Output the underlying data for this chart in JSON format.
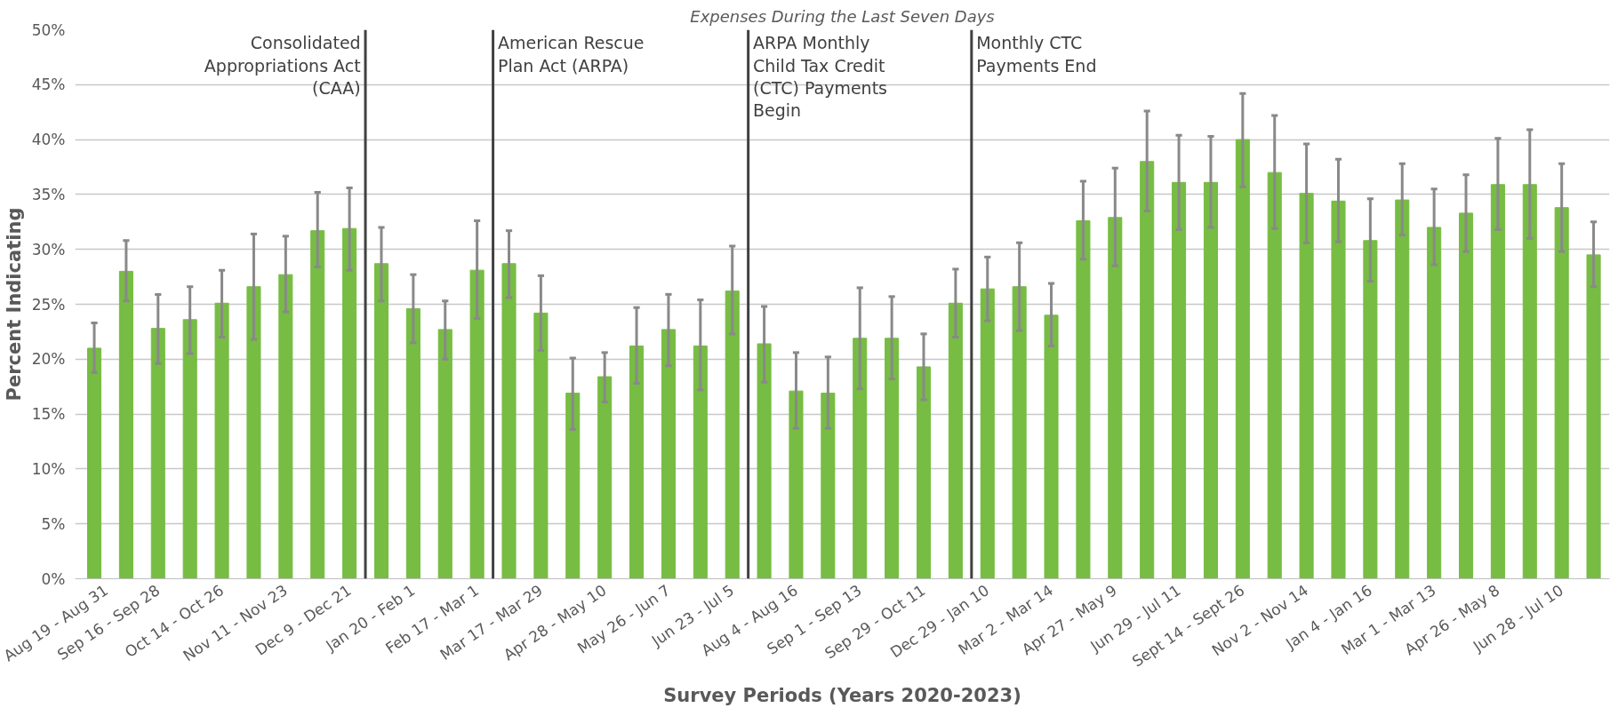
{
  "chart_data": {
    "type": "bar",
    "title": "Expenses During the Last Seven Days",
    "xlabel": "Survey Periods (Years 2020-2023)",
    "ylabel": "Percent Indicating",
    "categories": [
      "Aug 19 - Aug 31",
      null,
      "Sep 16 - Sep 28",
      null,
      "Oct 14 - Oct 26",
      null,
      "Nov 11 - Nov 23",
      null,
      "Dec 9 - Dec 21",
      null,
      "Jan 20 - Feb 1",
      null,
      "Feb 17 - Mar 1",
      null,
      "Mar 17 - Mar 29",
      null,
      "Apr 28 - May 10",
      null,
      "May 26 - Jun 7",
      null,
      "Jun 23 - Jul 5",
      null,
      "Aug 4 - Aug 16",
      null,
      "Sep 1 - Sep 13",
      null,
      "Sep 29 - Oct 11",
      null,
      "Dec 29 - Jan 10",
      null,
      "Mar 2 - Mar 14",
      null,
      "Apr 27 - May 9",
      null,
      "Jun 29 - Jul 11",
      null,
      "Sept 14 - Sept 26",
      null,
      "Nov 2 - Nov 14",
      null,
      "Jan 4 - Jan 16",
      null,
      "Mar 1 - Mar 13",
      null,
      "Apr 26 - May 8",
      null,
      "Jun 28 - Jul 10",
      null
    ],
    "series": [
      {
        "color": "#77bc43",
        "values": [
          21.0,
          28.0,
          22.8,
          23.6,
          25.1,
          26.6,
          27.7,
          31.7,
          31.9,
          28.7,
          24.6,
          22.7,
          28.1,
          28.7,
          24.2,
          16.9,
          18.4,
          21.2,
          22.7,
          21.2,
          26.2,
          21.4,
          17.1,
          16.9,
          21.9,
          21.9,
          19.3,
          25.1,
          26.4,
          26.6,
          24.0,
          32.6,
          32.9,
          38.0,
          36.1,
          36.1,
          40.0,
          37.0,
          35.1,
          34.4,
          30.8,
          34.5,
          32.0,
          33.3,
          35.9,
          35.9,
          33.8,
          29.5
        ],
        "errors": [
          [
            18.8,
            23.3
          ],
          [
            25.3,
            30.8
          ],
          [
            19.6,
            25.9
          ],
          [
            20.5,
            26.6
          ],
          [
            22.0,
            28.1
          ],
          [
            21.8,
            31.4
          ],
          [
            24.3,
            31.2
          ],
          [
            28.4,
            35.2
          ],
          [
            28.1,
            35.6
          ],
          [
            25.3,
            32.0
          ],
          [
            21.5,
            27.7
          ],
          [
            20.0,
            25.3
          ],
          [
            23.7,
            32.6
          ],
          [
            25.6,
            31.7
          ],
          [
            20.8,
            27.6
          ],
          [
            13.6,
            20.1
          ],
          [
            16.1,
            20.6
          ],
          [
            17.8,
            24.7
          ],
          [
            19.4,
            25.9
          ],
          [
            17.2,
            25.4
          ],
          [
            22.3,
            30.3
          ],
          [
            17.9,
            24.8
          ],
          [
            13.7,
            20.6
          ],
          [
            13.7,
            20.2
          ],
          [
            17.3,
            26.5
          ],
          [
            18.2,
            25.7
          ],
          [
            16.3,
            22.3
          ],
          [
            22.0,
            28.2
          ],
          [
            23.5,
            29.3
          ],
          [
            22.6,
            30.6
          ],
          [
            21.2,
            26.9
          ],
          [
            29.1,
            36.2
          ],
          [
            28.5,
            37.4
          ],
          [
            33.5,
            42.6
          ],
          [
            31.8,
            40.4
          ],
          [
            32.0,
            40.3
          ],
          [
            35.7,
            44.2
          ],
          [
            31.9,
            42.2
          ],
          [
            30.6,
            39.6
          ],
          [
            30.7,
            38.2
          ],
          [
            27.1,
            34.6
          ],
          [
            31.3,
            37.8
          ],
          [
            28.6,
            35.5
          ],
          [
            29.8,
            36.8
          ],
          [
            31.8,
            40.1
          ],
          [
            31.0,
            40.9
          ],
          [
            29.8,
            37.8
          ],
          [
            26.6,
            32.5
          ]
        ]
      }
    ],
    "ylim": [
      0,
      50
    ],
    "yticks": [
      {
        "value": 0,
        "label": "0%"
      },
      {
        "value": 5,
        "label": "5%"
      },
      {
        "value": 10,
        "label": "10%"
      },
      {
        "value": 15,
        "label": "15%"
      },
      {
        "value": 20,
        "label": "20%"
      },
      {
        "value": 25,
        "label": "25%"
      },
      {
        "value": 30,
        "label": "30%"
      },
      {
        "value": 35,
        "label": "35%"
      },
      {
        "value": 40,
        "label": "40%"
      },
      {
        "value": 45,
        "label": "45%"
      },
      {
        "value": 50,
        "label": "50%"
      }
    ],
    "annotations": [
      "Consolidated\nAppropriations Act\n(CAA)",
      "American Rescue\nPlan Act (ARPA)",
      "ARPA Monthly\nChild Tax Credit\n(CTC) Payments\nBegin",
      "Monthly CTC\nPayments End"
    ],
    "grid": "y"
  }
}
